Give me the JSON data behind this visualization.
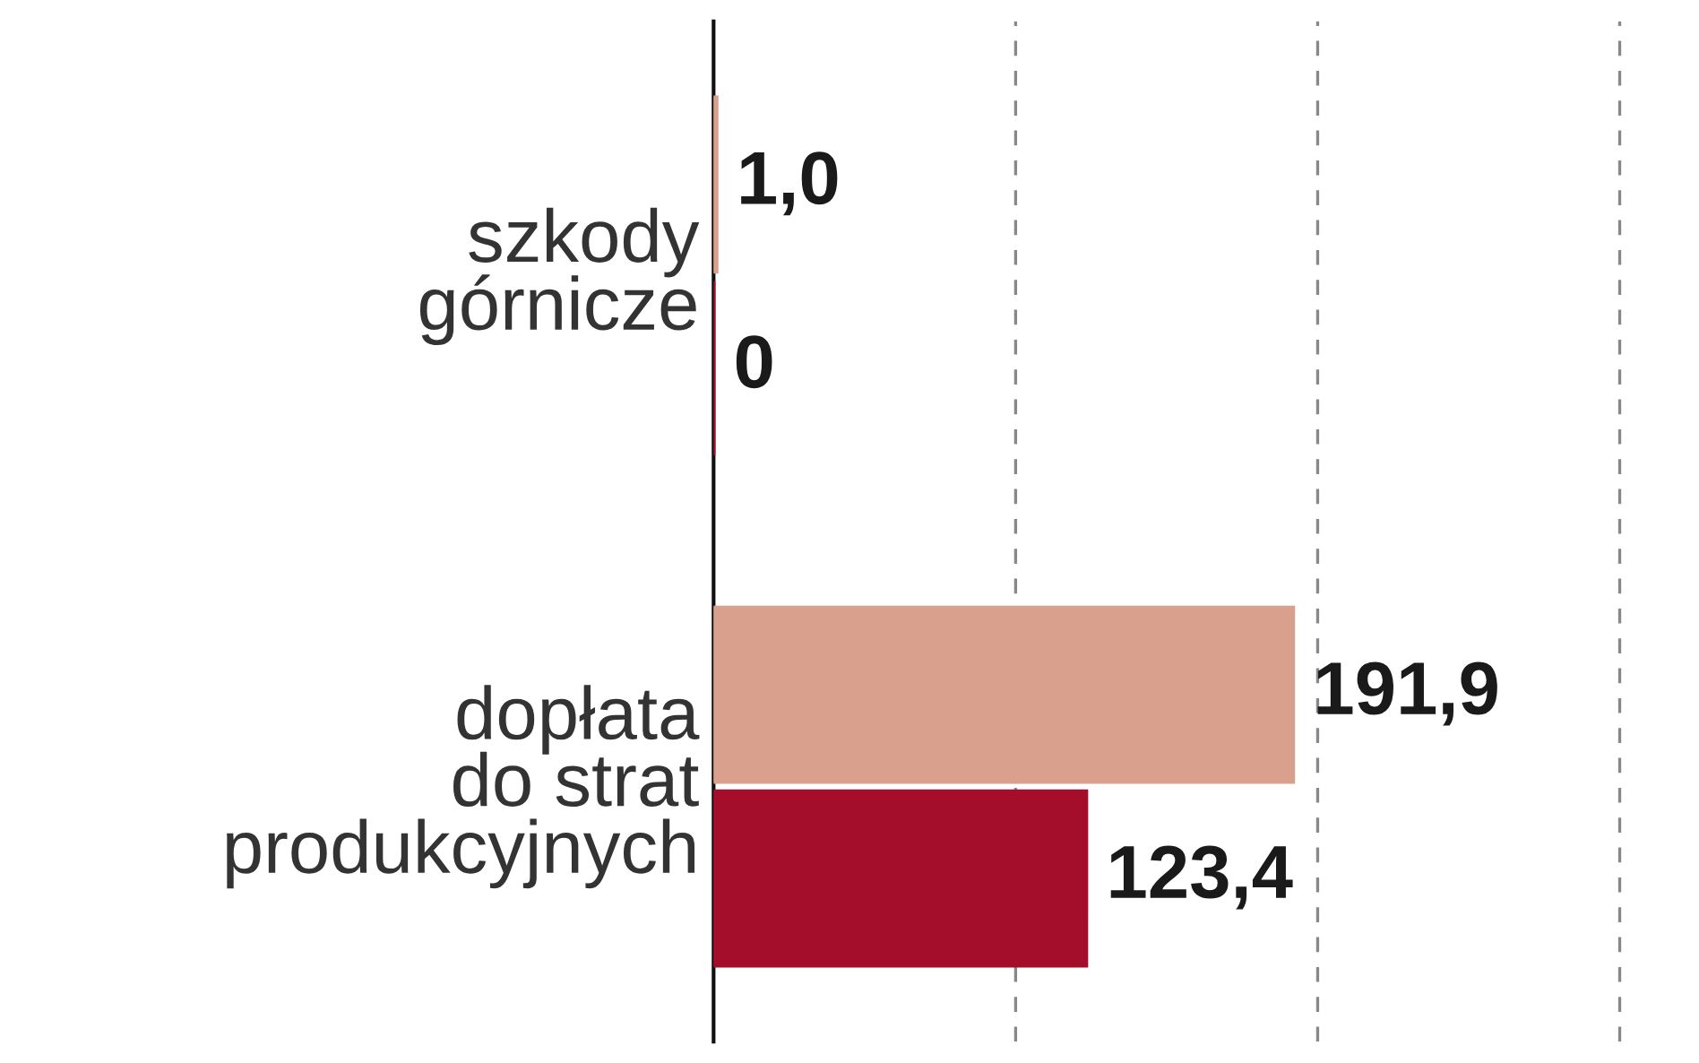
{
  "chart_data": {
    "type": "bar",
    "orientation": "horizontal",
    "categories": [
      "szkody\ngórnicze",
      "dopłata\ndo strat\nprodukcyjnych"
    ],
    "series": [
      {
        "color": "#d9a08e",
        "values": [
          1.0,
          191.9
        ],
        "value_labels": [
          "1,0",
          "191,9"
        ]
      },
      {
        "color": "#a50e2a",
        "values": [
          0,
          123.4
        ],
        "value_labels": [
          "0",
          "123,4"
        ]
      }
    ],
    "ref_lines": [
      {
        "axis": "x",
        "value": 100,
        "color": "#888888",
        "line_style": "dashed"
      },
      {
        "axis": "x",
        "value": 200,
        "color": "#888888",
        "line_style": "dashed"
      },
      {
        "axis": "x",
        "value": 300,
        "color": "#888888",
        "line_style": "dashed"
      }
    ]
  }
}
